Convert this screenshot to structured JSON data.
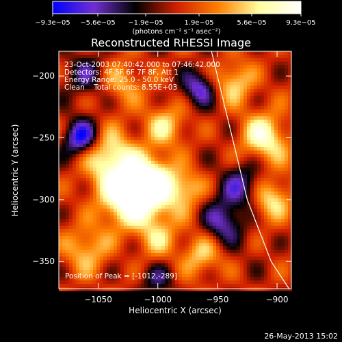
{
  "chart_data": {
    "type": "heatmap",
    "title": "Reconstructed RHESSI Image",
    "xlabel": "Heliocentric X (arcsec)",
    "ylabel": "Heliocentric Y (arcsec)",
    "xlim": [
      -1083,
      -888
    ],
    "ylim": [
      -372,
      -180
    ],
    "x_ticks": [
      -1050,
      -1000,
      -950,
      -900
    ],
    "y_ticks": [
      -200,
      -250,
      -300,
      -350
    ],
    "x_tick_labels": [
      "−1050",
      "−1000",
      "−950",
      "−900"
    ],
    "y_tick_labels": [
      "−200",
      "−250",
      "−300",
      "−350"
    ],
    "colorbar": {
      "min": -9.3e-05,
      "max": 9.3e-05,
      "tick_labels": [
        "−9.3e−05",
        "−5.6e−05",
        "−1.9e−05",
        "1.9e−05",
        "5.6e−05",
        "9.3e−05"
      ],
      "unit_label": "(photons cm⁻² s⁻¹ asec⁻²)",
      "colors": [
        "#0000ff",
        "#7030d0",
        "#000000",
        "#d02000",
        "#ff8000",
        "#ffffa0",
        "#ffffff"
      ]
    },
    "annotations": [
      "23-Oct-2003 07:40:42.000 to 07:46:42.000",
      "Detectors: 4F 5F 6F 7F 8F, Att 1",
      "Energy Range: 25.0 - 50.0 keV",
      "Clean    Total counts: 8.55E+03"
    ],
    "peak_label": "Position of Peak = [-1012,-289]",
    "peak": [
      -1012,
      -289
    ],
    "limb_curve": [
      [
        -955,
        -180
      ],
      [
        -940,
        -240
      ],
      [
        -925,
        -300
      ],
      [
        -905,
        -350
      ],
      [
        -890,
        -372
      ]
    ],
    "hot_spots": [
      {
        "x": -1025,
        "y": -295,
        "sigma": 18,
        "amp": 1.0
      },
      {
        "x": -1005,
        "y": -290,
        "sigma": 16,
        "amp": 0.95
      },
      {
        "x": -1040,
        "y": -265,
        "sigma": 14,
        "amp": 0.7
      },
      {
        "x": -995,
        "y": -240,
        "sigma": 12,
        "amp": 0.6
      },
      {
        "x": -1030,
        "y": -205,
        "sigma": 12,
        "amp": 0.5
      },
      {
        "x": -910,
        "y": -250,
        "sigma": 14,
        "amp": 0.8
      },
      {
        "x": -905,
        "y": -300,
        "sigma": 12,
        "amp": 0.7
      },
      {
        "x": -935,
        "y": -205,
        "sigma": 12,
        "amp": 0.6
      },
      {
        "x": -965,
        "y": -345,
        "sigma": 12,
        "amp": 0.55
      },
      {
        "x": -1060,
        "y": -340,
        "sigma": 14,
        "amp": 0.5
      },
      {
        "x": -975,
        "y": -290,
        "sigma": 10,
        "amp": 0.5
      },
      {
        "x": -1000,
        "y": -330,
        "sigma": 12,
        "amp": 0.45
      }
    ],
    "cold_spots": [
      {
        "x": -1065,
        "y": -250,
        "sigma": 10,
        "amp": 0.9
      },
      {
        "x": -965,
        "y": -210,
        "sigma": 10,
        "amp": 0.7
      },
      {
        "x": -930,
        "y": -290,
        "sigma": 14,
        "amp": 0.6
      },
      {
        "x": -945,
        "y": -320,
        "sigma": 12,
        "amp": 0.6
      },
      {
        "x": -1060,
        "y": -200,
        "sigma": 12,
        "amp": 0.5
      },
      {
        "x": -1000,
        "y": -365,
        "sigma": 10,
        "amp": 0.4
      }
    ]
  },
  "footer": {
    "timestamp": "26-May-2013 15:02"
  }
}
